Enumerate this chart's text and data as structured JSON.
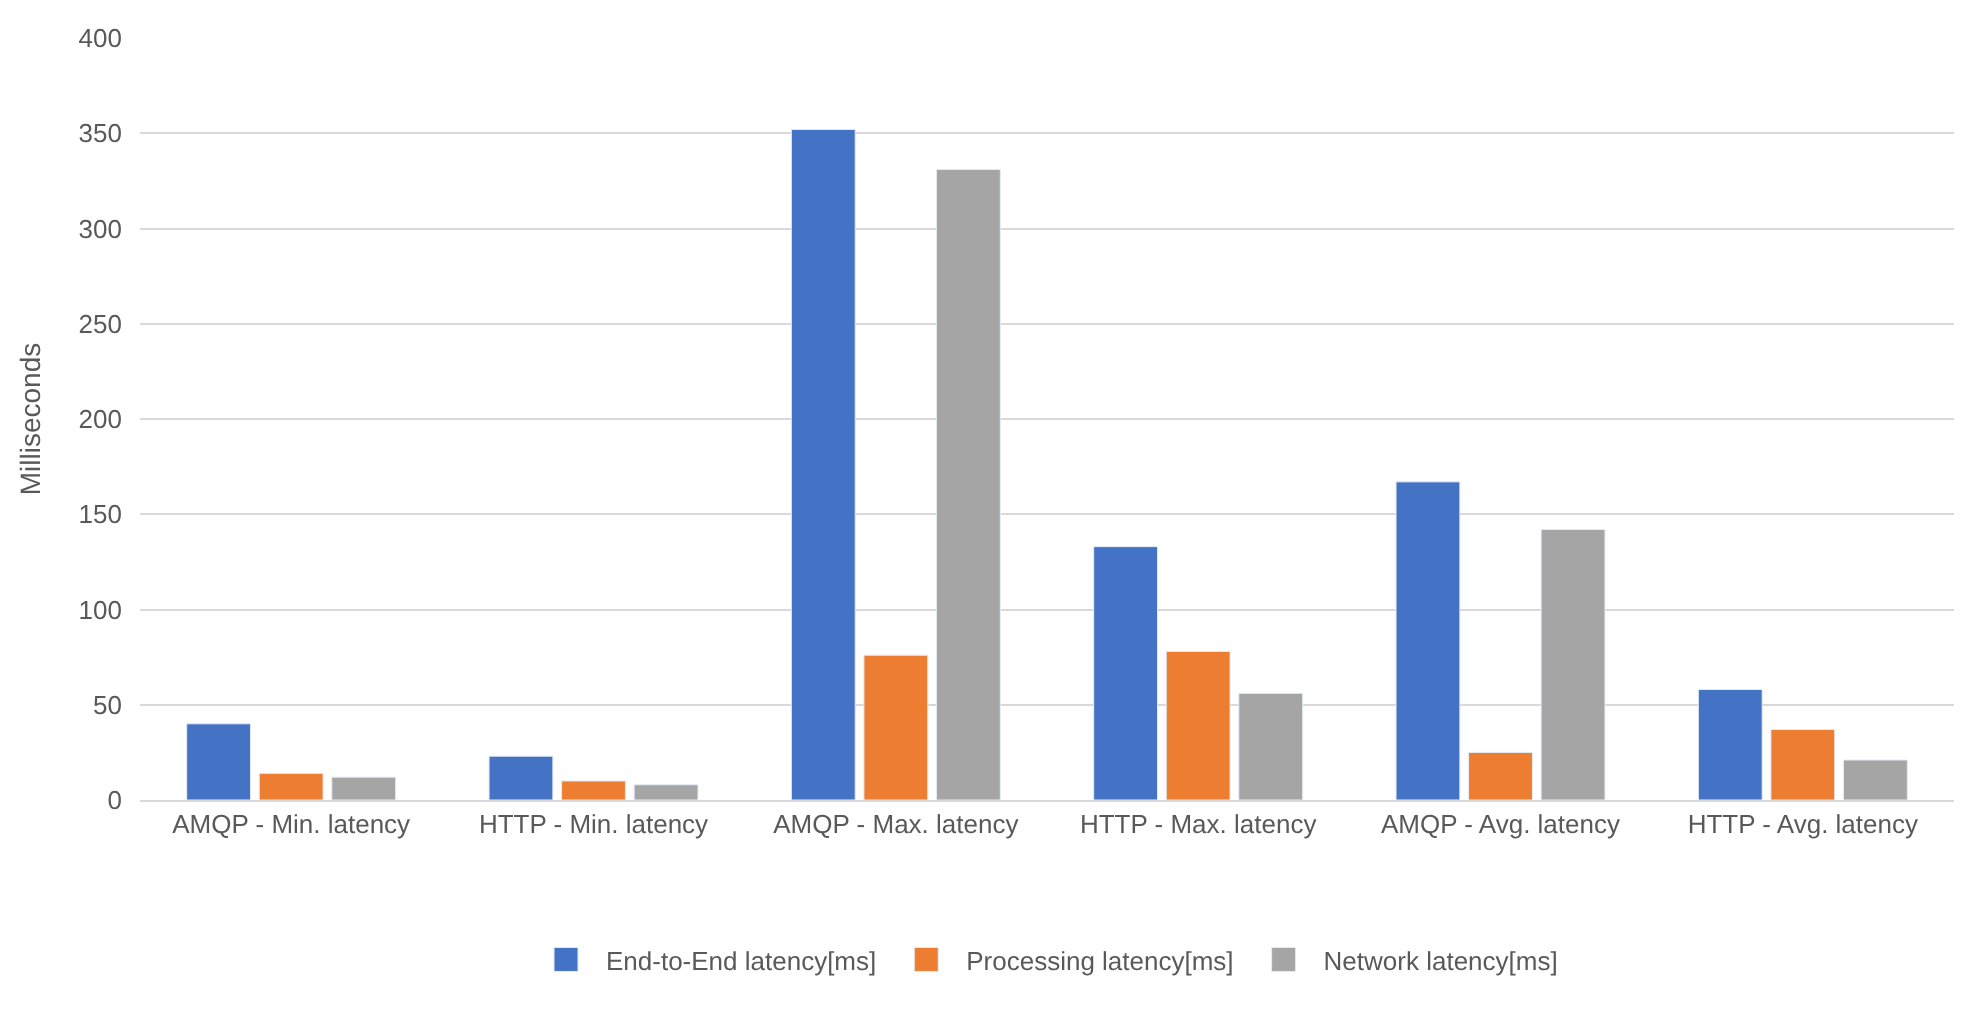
{
  "chart_data": {
    "type": "bar",
    "ylabel": "Milliseconds",
    "categories": [
      "AMQP - Min. latency",
      "HTTP - Min. latency",
      "AMQP - Max. latency",
      "HTTP - Max. latency",
      "AMQP - Avg. latency",
      "HTTP - Avg. latency"
    ],
    "series": [
      {
        "name": "End-to-End latency[ms]",
        "color": "#4472c4",
        "values": [
          40,
          23,
          352,
          133,
          167,
          58
        ]
      },
      {
        "name": "Processing latency[ms]",
        "color": "#ed7d31",
        "values": [
          14,
          10,
          76,
          78,
          25,
          37
        ]
      },
      {
        "name": "Network latency[ms]",
        "color": "#a5a5a5",
        "values": [
          12,
          8,
          331,
          56,
          142,
          21
        ]
      }
    ],
    "ylim": [
      0,
      400
    ],
    "yticks": [
      0,
      50,
      100,
      150,
      200,
      250,
      300,
      350,
      400
    ],
    "grid": "y",
    "legend": "bottom"
  }
}
